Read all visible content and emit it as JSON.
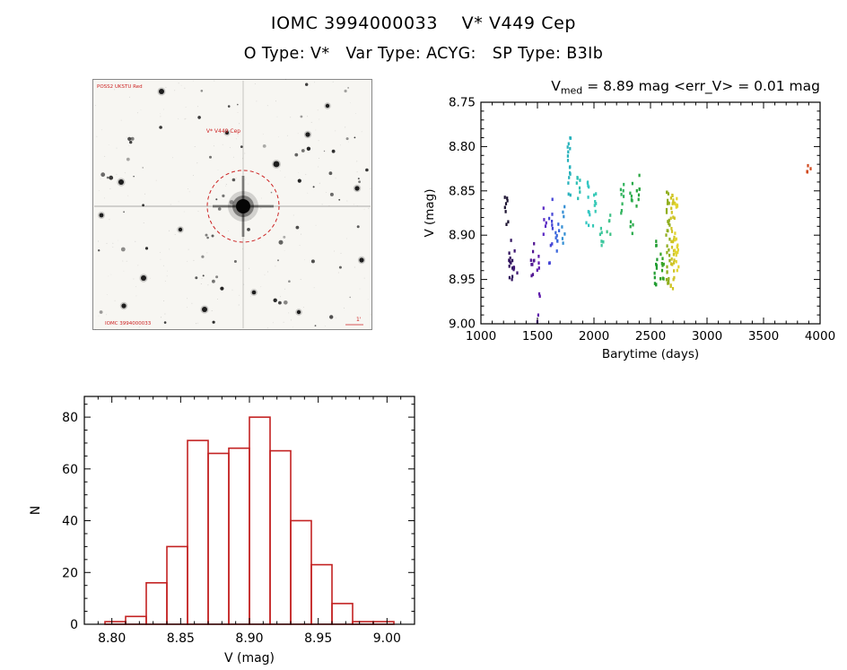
{
  "page": {
    "title": "IOMC 3994000033    V* V449 Cep",
    "subtitle": "O Type: V*   Var Type: ACYG:   SP Type: B3Ib"
  },
  "finding_chart": {
    "survey_label": "POSS2 UKSTU Red",
    "target_label": "V* V449 Cep",
    "bottom_label": "IOMC 3994000033",
    "scale_label": "1'",
    "marker_color": "#cc2222"
  },
  "chart_data": [
    {
      "id": "lightcurve",
      "type": "scatter",
      "title_parts": [
        {
          "text": "V",
          "sub": false
        },
        {
          "text": "med",
          "sub": true
        },
        {
          "text": " = 8.89 mag  <err_V> = 0.01 mag",
          "sub": false
        }
      ],
      "xlabel": "Barytime (days)",
      "ylabel": "V (mag)",
      "xlim": [
        1000,
        4000
      ],
      "ylim_top": 8.75,
      "ylim_bottom": 9.0,
      "y_axis_inverted": true,
      "grid": false,
      "xticks": [
        "1000",
        "1500",
        "2000",
        "2500",
        "3000",
        "3500",
        "4000"
      ],
      "yticks": [
        "8.75",
        "8.80",
        "8.85",
        "8.90",
        "8.95",
        "9.00"
      ],
      "clusters": [
        {
          "t": 1225,
          "color": "#1b1230",
          "vmin": 8.856,
          "vmax": 8.888,
          "n": 8
        },
        {
          "t": 1262,
          "color": "#31135e",
          "vmin": 8.905,
          "vmax": 8.952,
          "n": 12
        },
        {
          "t": 1305,
          "color": "#3d1472",
          "vmin": 8.915,
          "vmax": 8.945,
          "n": 5
        },
        {
          "t": 1455,
          "color": "#521792",
          "vmin": 8.9,
          "vmax": 8.962,
          "n": 9
        },
        {
          "t": 1505,
          "color": "#5f18ac",
          "vmin": 8.922,
          "vmax": 8.998,
          "n": 8
        },
        {
          "t": 1562,
          "color": "#5c2cc4",
          "vmin": 8.862,
          "vmax": 8.9,
          "n": 5
        },
        {
          "t": 1618,
          "color": "#4545d6",
          "vmin": 8.858,
          "vmax": 8.938,
          "n": 10
        },
        {
          "t": 1676,
          "color": "#3a66dc",
          "vmin": 8.878,
          "vmax": 8.924,
          "n": 8
        },
        {
          "t": 1732,
          "color": "#338ed4",
          "vmin": 8.862,
          "vmax": 8.91,
          "n": 7
        },
        {
          "t": 1782,
          "color": "#27b2bc",
          "vmin": 8.79,
          "vmax": 8.856,
          "n": 16
        },
        {
          "t": 1862,
          "color": "#2abfb2",
          "vmin": 8.826,
          "vmax": 8.862,
          "n": 7
        },
        {
          "t": 1948,
          "color": "#31c6c2",
          "vmin": 8.84,
          "vmax": 8.894,
          "n": 10
        },
        {
          "t": 2006,
          "color": "#36c9b6",
          "vmin": 8.852,
          "vmax": 8.892,
          "n": 7
        },
        {
          "t": 2066,
          "color": "#3cc79e",
          "vmin": 8.886,
          "vmax": 8.912,
          "n": 6
        },
        {
          "t": 2128,
          "color": "#40c288",
          "vmin": 8.876,
          "vmax": 8.9,
          "n": 5
        },
        {
          "t": 2252,
          "color": "#32b45e",
          "vmin": 8.836,
          "vmax": 8.876,
          "n": 8
        },
        {
          "t": 2332,
          "color": "#2aab4c",
          "vmin": 8.836,
          "vmax": 8.9,
          "n": 10
        },
        {
          "t": 2394,
          "color": "#28a640",
          "vmin": 8.83,
          "vmax": 8.87,
          "n": 7
        },
        {
          "t": 2552,
          "color": "#209c30",
          "vmin": 8.906,
          "vmax": 8.958,
          "n": 12
        },
        {
          "t": 2602,
          "color": "#35a326",
          "vmin": 8.918,
          "vmax": 8.954,
          "n": 9
        },
        {
          "t": 2656,
          "color": "#90ae1e",
          "vmin": 8.85,
          "vmax": 8.958,
          "n": 30
        },
        {
          "t": 2696,
          "color": "#cfc426",
          "vmin": 8.85,
          "vmax": 8.962,
          "n": 32
        },
        {
          "t": 2732,
          "color": "#e2d42e",
          "vmin": 8.856,
          "vmax": 8.944,
          "n": 20
        },
        {
          "t": 3902,
          "color": "#d14a1e",
          "vmin": 8.81,
          "vmax": 8.832,
          "n": 5
        }
      ]
    },
    {
      "id": "histogram",
      "type": "bar",
      "xlabel": "V (mag)",
      "ylabel": "N",
      "xlim": [
        8.78,
        9.02
      ],
      "ylim": [
        0,
        88
      ],
      "grid": false,
      "bin_start": 8.795,
      "bin_width": 0.015,
      "values": [
        1,
        3,
        16,
        30,
        71,
        66,
        68,
        80,
        67,
        40,
        23,
        8,
        1,
        1
      ],
      "xticks": [
        "8.80",
        "8.85",
        "8.90",
        "8.95",
        "9.00"
      ],
      "yticks": [
        "0",
        "20",
        "40",
        "60",
        "80"
      ],
      "color": "#c32222"
    }
  ]
}
